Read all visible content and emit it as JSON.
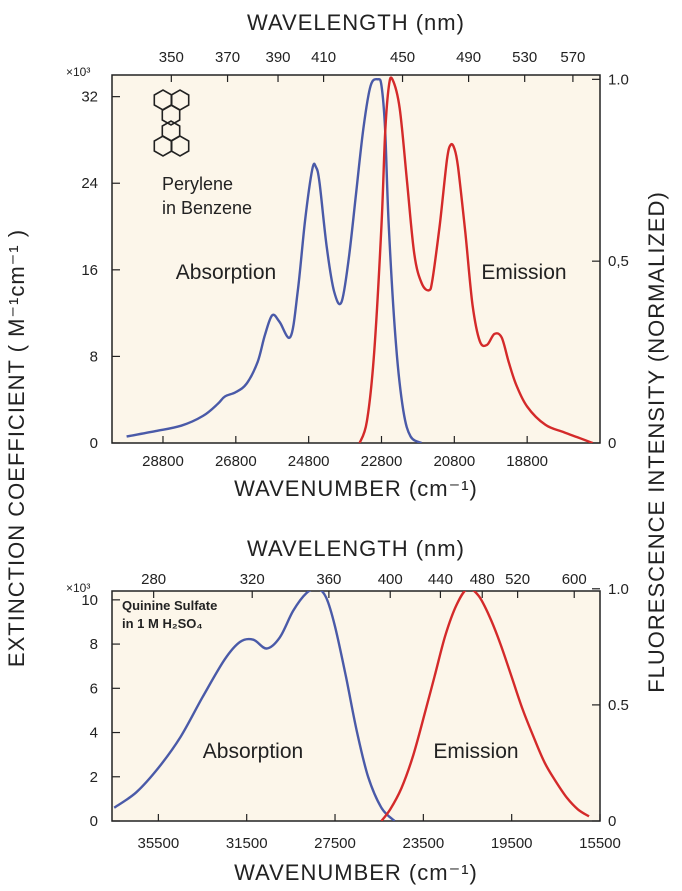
{
  "common": {
    "left_axis_label": "EXTINCTION   COEFFICIENT   ( M⁻¹cm⁻¹ )",
    "right_axis_label": "FLUORESCENCE   INTENSITY   (NORMALIZED)",
    "colors": {
      "absorption": "#4a5aa8",
      "emission": "#d42a2a",
      "panel_bg": "#fcf6ea",
      "axis": "#222222"
    }
  },
  "chart_data": [
    {
      "type": "line",
      "title": "",
      "panel": "top",
      "top_axis_title": "WAVELENGTH  (nm)",
      "top_ticks": [
        "350",
        "370",
        "390",
        "410",
        "450",
        "490",
        "530",
        "570"
      ],
      "top_tick_wavenumbers": [
        28571,
        27027,
        25641,
        24390,
        22222,
        20408,
        18868,
        17544
      ],
      "bottom_axis_title": "WAVENUMBER  (cm⁻¹)",
      "xlim": [
        30200,
        16800
      ],
      "x_ticks": [
        "28800",
        "26800",
        "24800",
        "22800",
        "20800",
        "18800"
      ],
      "x_tick_values": [
        28800,
        26800,
        24800,
        22800,
        20800,
        18800
      ],
      "y_multiplier": "×10³",
      "ylim": [
        0,
        34
      ],
      "y_ticks": [
        "0",
        "8",
        "16",
        "24",
        "32"
      ],
      "y_tick_values": [
        0,
        8,
        16,
        24,
        32
      ],
      "y2_ticks": [
        "0",
        "0,5",
        "1.0"
      ],
      "y2_tick_values": [
        0,
        0.5,
        1.0
      ],
      "annotation_lines": [
        "Perylene",
        "in Benzene"
      ],
      "series": [
        {
          "name": "Absorption",
          "axis": "left",
          "color": "#4a5aa8",
          "x": [
            29800,
            29000,
            28300,
            27700,
            27300,
            27100,
            26800,
            26500,
            26200,
            26000,
            25800,
            25600,
            25300,
            25100,
            24900,
            24700,
            24600,
            24500,
            24300,
            24100,
            23900,
            23700,
            23500,
            23300,
            23100,
            22900,
            22800,
            22700,
            22600,
            22400,
            22200,
            22000,
            21700
          ],
          "y": [
            0.6,
            1.1,
            1.6,
            2.5,
            3.6,
            4.3,
            4.7,
            5.5,
            7.5,
            10,
            11.8,
            11.2,
            9.8,
            14,
            20.5,
            25.3,
            25.5,
            24,
            18,
            14,
            13,
            17,
            23,
            29,
            33,
            33.6,
            33,
            29,
            20,
            9,
            3,
            0.6,
            0
          ]
        },
        {
          "name": "Emission",
          "axis": "right",
          "color": "#d42a2a",
          "x": [
            23400,
            23200,
            23000,
            22800,
            22700,
            22600,
            22500,
            22300,
            22100,
            21900,
            21700,
            21500,
            21400,
            21200,
            21000,
            20900,
            20800,
            20700,
            20500,
            20300,
            20100,
            19900,
            19700,
            19500,
            19300,
            19100,
            18800,
            18300,
            17800,
            17400,
            17000
          ],
          "y": [
            0,
            0.06,
            0.25,
            0.6,
            0.85,
            0.98,
            1.0,
            0.92,
            0.72,
            0.52,
            0.44,
            0.42,
            0.45,
            0.6,
            0.78,
            0.82,
            0.81,
            0.76,
            0.58,
            0.38,
            0.28,
            0.27,
            0.3,
            0.29,
            0.22,
            0.16,
            0.1,
            0.05,
            0.03,
            0.015,
            0.0
          ]
        }
      ],
      "labels": [
        "Absorption",
        "Emission"
      ]
    },
    {
      "type": "line",
      "title": "",
      "panel": "bottom",
      "top_axis_title": "WAVELENGTH  (nm)",
      "top_ticks": [
        "280",
        "320",
        "360",
        "400",
        "440",
        "480",
        "520",
        "600"
      ],
      "top_tick_wavenumbers": [
        35714,
        31250,
        27778,
        25000,
        22727,
        20833,
        19231,
        16667
      ],
      "bottom_axis_title": "WAVENUMBER  (cm⁻¹)",
      "xlim": [
        37600,
        15500
      ],
      "x_ticks": [
        "35500",
        "31500",
        "27500",
        "23500",
        "19500",
        "15500"
      ],
      "x_tick_values": [
        35500,
        31500,
        27500,
        23500,
        19500,
        15500
      ],
      "y_multiplier": "×10³",
      "ylim": [
        0,
        10.4
      ],
      "y_ticks": [
        "0",
        "2",
        "4",
        "6",
        "8",
        "10"
      ],
      "y_tick_values": [
        0,
        2,
        4,
        6,
        8,
        10
      ],
      "y2_ticks": [
        "0",
        "0.5",
        "1.0"
      ],
      "y2_tick_values": [
        0,
        0.5,
        1.0
      ],
      "annotation_lines": [
        "Quinine Sulfate",
        "in 1 M H₂SO₄"
      ],
      "series": [
        {
          "name": "Absorption",
          "axis": "left",
          "color": "#4a5aa8",
          "x": [
            37500,
            36500,
            35500,
            34500,
            33500,
            32500,
            31800,
            31200,
            30600,
            30000,
            29400,
            28800,
            28300,
            27900,
            27500,
            27000,
            26500,
            26000,
            25400,
            24800
          ],
          "y": [
            0.6,
            1.3,
            2.4,
            3.8,
            5.6,
            7.3,
            8.1,
            8.2,
            7.8,
            8.3,
            9.5,
            10.3,
            10.5,
            10.1,
            8.8,
            6.5,
            4.0,
            2.0,
            0.6,
            0
          ]
        },
        {
          "name": "Emission",
          "axis": "right",
          "color": "#d42a2a",
          "x": [
            25400,
            25000,
            24500,
            24000,
            23500,
            23000,
            22500,
            22000,
            21500,
            21000,
            20500,
            20000,
            19500,
            19000,
            18500,
            18000,
            17500,
            17000,
            16500,
            16000
          ],
          "y": [
            0,
            0.05,
            0.14,
            0.27,
            0.44,
            0.62,
            0.8,
            0.93,
            1.0,
            0.97,
            0.88,
            0.76,
            0.62,
            0.48,
            0.36,
            0.25,
            0.17,
            0.1,
            0.05,
            0.02
          ]
        }
      ],
      "labels": [
        "Absorption",
        "Emission"
      ]
    }
  ]
}
